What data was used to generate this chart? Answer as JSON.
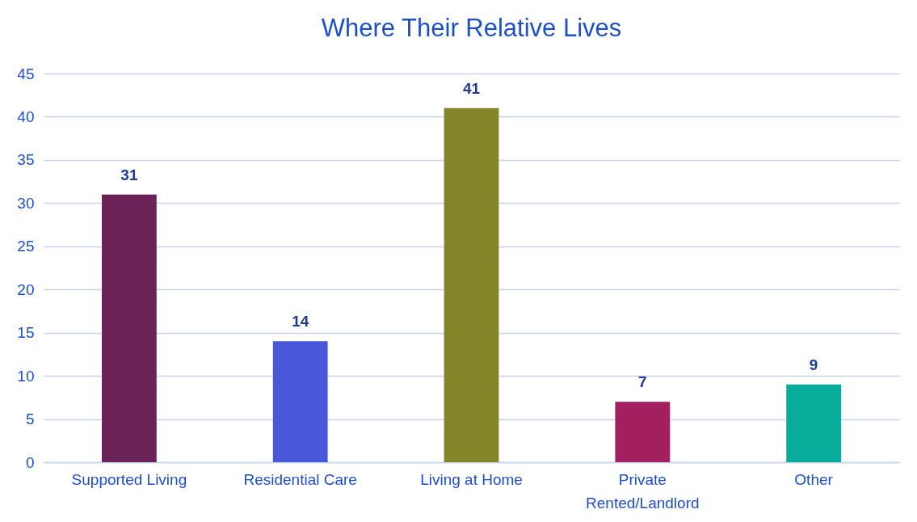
{
  "chart_data": {
    "type": "bar",
    "title": "Where Their Relative Lives",
    "categories": [
      "Supported Living",
      "Residential Care",
      "Living at Home",
      "Private Rented/Landlord",
      "Other"
    ],
    "values": [
      31,
      14,
      41,
      7,
      9
    ],
    "colors": [
      "#6b2357",
      "#4858d8",
      "#838528",
      "#a22060",
      "#07ac9a"
    ],
    "ylim": [
      0,
      45
    ],
    "yticks": [
      0,
      5,
      10,
      15,
      20,
      25,
      30,
      35,
      40,
      45
    ],
    "grid": "y",
    "data_labels": true,
    "legend": false
  }
}
